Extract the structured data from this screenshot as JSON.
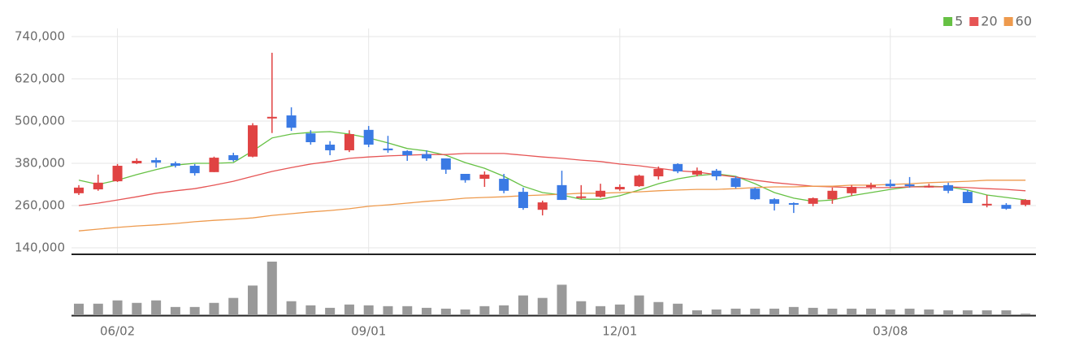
{
  "chart_data": {
    "type": "candlestick",
    "categories": [
      null,
      null,
      "06/02",
      null,
      null,
      null,
      null,
      null,
      null,
      null,
      null,
      null,
      null,
      null,
      null,
      "09/01",
      null,
      null,
      null,
      null,
      null,
      null,
      null,
      null,
      null,
      null,
      null,
      null,
      "12/01",
      null,
      null,
      null,
      null,
      null,
      null,
      null,
      null,
      null,
      null,
      null,
      null,
      null,
      "03/08",
      null,
      null,
      null,
      null,
      null,
      null,
      null
    ],
    "open": [
      295000,
      306000,
      329000,
      380000,
      389000,
      380000,
      373000,
      355000,
      403000,
      399000,
      510000,
      516000,
      465000,
      433000,
      417000,
      475000,
      422000,
      415000,
      406000,
      394000,
      350000,
      336000,
      336000,
      299000,
      248000,
      318000,
      283000,
      285000,
      306000,
      315000,
      343000,
      378000,
      348000,
      359000,
      338000,
      308000,
      278000,
      267000,
      265000,
      278000,
      295000,
      313000,
      322000,
      320000,
      313000,
      318000,
      299000,
      262000,
      262000,
      262000
    ],
    "high": [
      318000,
      348000,
      378000,
      394000,
      396000,
      385000,
      378000,
      399000,
      410000,
      494000,
      694000,
      539000,
      474000,
      443000,
      474000,
      486000,
      458000,
      417000,
      417000,
      394000,
      350000,
      357000,
      350000,
      311000,
      274000,
      359000,
      318000,
      322000,
      320000,
      348000,
      371000,
      380000,
      368000,
      364000,
      343000,
      311000,
      281000,
      269000,
      283000,
      311000,
      318000,
      325000,
      334000,
      341000,
      322000,
      325000,
      304000,
      290000,
      267000,
      278000
    ],
    "low": [
      290000,
      302000,
      327000,
      378000,
      368000,
      368000,
      345000,
      355000,
      385000,
      397000,
      466000,
      472000,
      433000,
      403000,
      412000,
      426000,
      410000,
      387000,
      387000,
      350000,
      325000,
      313000,
      295000,
      248000,
      232000,
      276000,
      278000,
      283000,
      302000,
      313000,
      334000,
      352000,
      343000,
      332000,
      309000,
      276000,
      246000,
      239000,
      258000,
      265000,
      288000,
      306000,
      311000,
      311000,
      311000,
      295000,
      267000,
      255000,
      248000,
      258000
    ],
    "close": [
      311000,
      325000,
      373000,
      387000,
      382000,
      373000,
      352000,
      396000,
      389000,
      488000,
      512000,
      481000,
      440000,
      417000,
      463000,
      433000,
      417000,
      403000,
      394000,
      362000,
      332000,
      348000,
      302000,
      253000,
      269000,
      276000,
      286000,
      302000,
      313000,
      345000,
      364000,
      357000,
      359000,
      343000,
      313000,
      278000,
      265000,
      265000,
      281000,
      302000,
      313000,
      318000,
      315000,
      315000,
      316000,
      302000,
      267000,
      265000,
      251000,
      276000
    ],
    "up_color": "#e04343",
    "down_color": "#3a7ae4",
    "series": [
      {
        "name": "5",
        "color": "#66c144",
        "values": [
          332000,
          320000,
          332000,
          348000,
          362000,
          375000,
          380000,
          380000,
          382000,
          415000,
          452000,
          463000,
          468000,
          470000,
          463000,
          452000,
          438000,
          422000,
          415000,
          403000,
          382000,
          366000,
          343000,
          315000,
          297000,
          290000,
          278000,
          278000,
          288000,
          304000,
          322000,
          336000,
          345000,
          350000,
          343000,
          322000,
          297000,
          281000,
          272000,
          276000,
          288000,
          297000,
          306000,
          313000,
          315000,
          313000,
          304000,
          290000,
          283000,
          276000
        ]
      },
      {
        "name": "20",
        "color": "#e65555",
        "values": [
          260000,
          267000,
          276000,
          285000,
          295000,
          302000,
          308000,
          318000,
          329000,
          343000,
          357000,
          368000,
          378000,
          385000,
          394000,
          398000,
          401000,
          403000,
          405000,
          405000,
          408000,
          408000,
          408000,
          403000,
          398000,
          394000,
          389000,
          385000,
          378000,
          373000,
          366000,
          359000,
          355000,
          348000,
          341000,
          332000,
          325000,
          320000,
          315000,
          313000,
          311000,
          311000,
          311000,
          313000,
          313000,
          313000,
          311000,
          308000,
          306000,
          302000
        ]
      },
      {
        "name": "60",
        "color": "#ee9a4d",
        "values": [
          188000,
          193000,
          198000,
          202000,
          205000,
          209000,
          214000,
          218000,
          221000,
          225000,
          232000,
          237000,
          242000,
          246000,
          251000,
          258000,
          262000,
          267000,
          272000,
          276000,
          281000,
          283000,
          285000,
          288000,
          290000,
          292000,
          295000,
          295000,
          297000,
          299000,
          302000,
          304000,
          306000,
          306000,
          308000,
          311000,
          313000,
          313000,
          315000,
          315000,
          318000,
          318000,
          320000,
          322000,
          325000,
          327000,
          329000,
          332000,
          332000,
          332000
        ]
      }
    ],
    "volume": {
      "color": "#999999",
      "values": [
        14,
        14,
        18,
        15,
        18,
        10,
        10,
        15,
        21,
        36,
        65,
        17,
        12,
        9,
        13,
        12,
        11,
        11,
        9,
        8,
        7,
        11,
        12,
        24,
        21,
        37,
        17,
        11,
        13,
        24,
        16,
        14,
        6,
        7,
        8,
        8,
        8,
        10,
        9,
        8,
        8,
        8,
        7,
        8,
        7,
        6,
        6,
        6,
        6,
        2
      ]
    },
    "ylim": [
      140000,
      740000
    ],
    "yticks": [
      {
        "value": 140000,
        "label": "140,000"
      },
      {
        "value": 260000,
        "label": "260,000"
      },
      {
        "value": 380000,
        "label": "380,000"
      },
      {
        "value": 500000,
        "label": "500,000"
      },
      {
        "value": 620000,
        "label": "620,000"
      },
      {
        "value": 740000,
        "label": "740,000"
      }
    ],
    "grid": true,
    "legend": "top-right"
  }
}
